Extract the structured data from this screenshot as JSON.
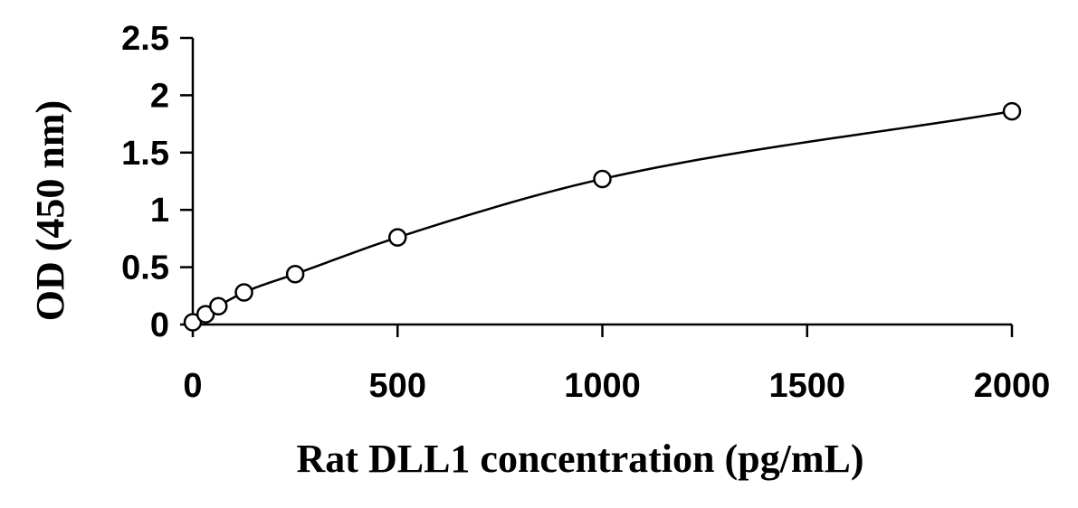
{
  "chart_data": {
    "type": "scatter",
    "title": "",
    "xlabel": "Rat DLL1 concentration (pg/mL)",
    "ylabel": "OD (450 nm)",
    "xlim": [
      0,
      2000
    ],
    "ylim": [
      0,
      2.5
    ],
    "x_ticks": [
      0,
      500,
      1000,
      1500,
      2000
    ],
    "x_tick_labels": [
      "0",
      "500",
      "1000",
      "1500",
      "2000"
    ],
    "y_ticks": [
      0,
      0.5,
      1,
      1.5,
      2,
      2.5
    ],
    "y_tick_labels": [
      "0",
      "0.5",
      "1",
      "1.5",
      "2",
      "2.5"
    ],
    "grid": false,
    "legend": "none",
    "series": [
      {
        "marker": "open-circle",
        "x": [
          0,
          31.25,
          62.5,
          125,
          250,
          500,
          1000,
          2000
        ],
        "y": [
          0.02,
          0.09,
          0.16,
          0.28,
          0.44,
          0.76,
          1.27,
          1.86
        ],
        "fit_line": true
      }
    ],
    "colors": {
      "line": "#000000",
      "marker_stroke": "#000000",
      "marker_fill": "#ffffff"
    }
  }
}
